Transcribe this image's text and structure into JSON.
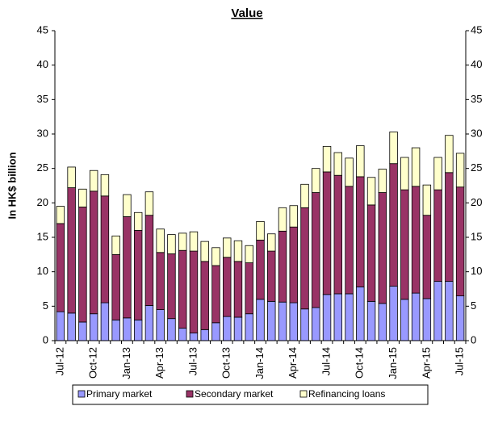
{
  "chart_data": {
    "type": "stacked_bar",
    "title": "Value",
    "y_label": "In HK$ billion",
    "categories": [
      "Jul-12",
      null,
      null,
      "Oct-12",
      null,
      null,
      "Jan-13",
      null,
      null,
      "Apr-13",
      null,
      null,
      "Jul-13",
      null,
      null,
      "Oct-13",
      null,
      null,
      "Jan-14",
      null,
      null,
      "Apr-14",
      null,
      null,
      "Jul-14",
      null,
      null,
      "Oct-14",
      null,
      null,
      "Jan-15",
      null,
      null,
      "Apr-15",
      null,
      null,
      "Jul-15"
    ],
    "series": [
      {
        "name": "Primary market",
        "color": "#9999ff",
        "values": [
          4.2,
          4.0,
          2.7,
          3.9,
          5.5,
          3.0,
          3.3,
          3.0,
          5.1,
          4.5,
          3.2,
          1.8,
          1.1,
          1.6,
          2.6,
          3.5,
          3.4,
          3.9,
          6.0,
          5.7,
          5.6,
          5.5,
          4.6,
          4.8,
          6.7,
          6.8,
          6.8,
          7.8,
          5.7,
          5.4,
          7.9,
          6.0,
          6.9,
          6.1,
          8.6,
          8.6,
          6.5
        ]
      },
      {
        "name": "Secondary market",
        "color": "#993366",
        "values": [
          12.8,
          18.2,
          16.7,
          17.8,
          15.5,
          9.5,
          14.7,
          13.0,
          13.1,
          8.3,
          9.4,
          11.3,
          11.9,
          9.9,
          8.3,
          8.6,
          8.1,
          7.4,
          8.6,
          7.3,
          10.3,
          11.0,
          14.7,
          16.7,
          17.8,
          17.2,
          15.6,
          16.0,
          14.0,
          16.1,
          17.8,
          15.9,
          15.5,
          12.1,
          13.3,
          15.8,
          15.8
        ]
      },
      {
        "name": "Refinancing loans",
        "color": "#ffffcc",
        "values": [
          2.5,
          3.0,
          2.6,
          3.0,
          3.1,
          2.7,
          3.2,
          2.6,
          3.4,
          3.4,
          2.8,
          2.5,
          2.8,
          2.9,
          2.6,
          2.8,
          3.0,
          2.5,
          2.7,
          2.5,
          3.4,
          3.1,
          3.4,
          3.5,
          3.7,
          3.3,
          4.1,
          4.5,
          4.0,
          3.4,
          4.6,
          4.7,
          5.6,
          4.4,
          4.7,
          5.4,
          4.9
        ]
      }
    ],
    "ylim": [
      0,
      45
    ],
    "yticks": [
      0,
      5,
      10,
      15,
      20,
      25,
      30,
      35,
      40,
      45
    ],
    "legend": "bottom"
  }
}
